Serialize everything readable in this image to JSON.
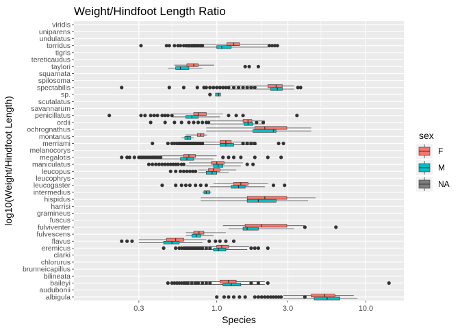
{
  "chart_data": {
    "type": "boxplot",
    "orientation": "horizontal",
    "title": "Weight/Hindfoot Length Ratio",
    "xlabel": "Species",
    "ylabel": "log10(Weight/Hindfoot Length)",
    "x_scale": "log10",
    "xlim": [
      0.11,
      18
    ],
    "x_ticks": [
      {
        "value": 0.3,
        "label": "0.3"
      },
      {
        "value": 1.0,
        "label": "1.0"
      },
      {
        "value": 3.0,
        "label": "3.0"
      },
      {
        "value": 10.0,
        "label": "10.0"
      }
    ],
    "x_minor_ticks": [
      0.1,
      0.5,
      2.0,
      5.0
    ],
    "grid": true,
    "legend": {
      "title": "sex",
      "position": "right",
      "entries": [
        {
          "label": "F",
          "color": "#F8766D"
        },
        {
          "label": "M",
          "color": "#00BFC4"
        },
        {
          "label": "NA",
          "color": "#7F7F7F"
        }
      ]
    },
    "categories": [
      "viridis",
      "uniparens",
      "undulatus",
      "torridus",
      "tigris",
      "tereticaudus",
      "taylori",
      "squamata",
      "spilosoma",
      "spectabilis",
      "sp.",
      "scutalatus",
      "savannarum",
      "penicillatus",
      "ordii",
      "ochrognathus",
      "montanus",
      "merriami",
      "melanocorys",
      "megalotis",
      "maniculatus",
      "leucopus",
      "leucophrys",
      "leucogaster",
      "intermedius",
      "hispidus",
      "harrisi",
      "gramineus",
      "fuscus",
      "fulviventer",
      "fulvescens",
      "flavus",
      "eremicus",
      "clarki",
      "chlorurus",
      "brunneicapillus",
      "bilineata",
      "baileyi",
      "audubonii",
      "albigula"
    ],
    "boxes": [
      {
        "category": "torridus",
        "sex": "F",
        "min": 0.62,
        "q1": 1.17,
        "median": 1.3,
        "q3": 1.42,
        "max": 2.2
      },
      {
        "category": "torridus",
        "sex": "M",
        "min": 0.62,
        "q1": 1.0,
        "median": 1.08,
        "q3": 1.25,
        "max": 2.2
      },
      {
        "category": "taylori",
        "sex": "F",
        "min": 0.52,
        "q1": 0.63,
        "median": 0.7,
        "q3": 0.75,
        "max": 0.96
      },
      {
        "category": "taylori",
        "sex": "M",
        "min": 0.47,
        "q1": 0.53,
        "median": 0.57,
        "q3": 0.65,
        "max": 0.8
      },
      {
        "category": "spectabilis",
        "sex": "F",
        "min": 1.2,
        "q1": 2.2,
        "median": 2.5,
        "q3": 2.75,
        "max": 3.3
      },
      {
        "category": "spectabilis",
        "sex": "M",
        "min": 1.2,
        "q1": 2.3,
        "median": 2.55,
        "q3": 2.75,
        "max": 3.3
      },
      {
        "category": "sp.",
        "sex": "M",
        "min": 0.98,
        "q1": 0.98,
        "median": 1.03,
        "q3": 1.06,
        "max": 1.06
      },
      {
        "category": "penicillatus",
        "sex": "F",
        "min": 0.5,
        "q1": 0.7,
        "median": 0.75,
        "q3": 0.85,
        "max": 1.1
      },
      {
        "category": "penicillatus",
        "sex": "M",
        "min": 0.5,
        "q1": 0.62,
        "median": 0.68,
        "q3": 0.75,
        "max": 1.05
      },
      {
        "category": "ordii",
        "sex": "F",
        "min": 0.9,
        "q1": 1.5,
        "median": 1.62,
        "q3": 1.72,
        "max": 2.1
      },
      {
        "category": "ordii",
        "sex": "M",
        "min": 0.9,
        "q1": 1.52,
        "median": 1.62,
        "q3": 1.75,
        "max": 2.1
      },
      {
        "category": "ochrognathus",
        "sex": "F",
        "min": 0.85,
        "q1": 1.8,
        "median": 2.1,
        "q3": 2.95,
        "max": 4.3
      },
      {
        "category": "ochrognathus",
        "sex": "M",
        "min": 0.85,
        "q1": 1.75,
        "median": 2.4,
        "q3": 2.5,
        "max": 4.3
      },
      {
        "category": "montanus",
        "sex": "F",
        "min": 0.62,
        "q1": 0.74,
        "median": 0.78,
        "q3": 0.82,
        "max": 0.86
      },
      {
        "category": "montanus",
        "sex": "M",
        "min": 0.58,
        "q1": 0.61,
        "median": 0.64,
        "q3": 0.67,
        "max": 0.7
      },
      {
        "category": "merriami",
        "sex": "F",
        "min": 0.55,
        "q1": 1.05,
        "median": 1.15,
        "q3": 1.25,
        "max": 1.8
      },
      {
        "category": "merriami",
        "sex": "M",
        "min": 0.55,
        "q1": 1.05,
        "median": 1.15,
        "q3": 1.3,
        "max": 1.85
      },
      {
        "category": "megalotis",
        "sex": "F",
        "min": 0.42,
        "q1": 0.6,
        "median": 0.65,
        "q3": 0.72,
        "max": 1.0
      },
      {
        "category": "megalotis",
        "sex": "M",
        "min": 0.42,
        "q1": 0.57,
        "median": 0.63,
        "q3": 0.7,
        "max": 0.95
      },
      {
        "category": "maniculatus",
        "sex": "F",
        "min": 0.65,
        "q1": 0.92,
        "median": 1.0,
        "q3": 1.12,
        "max": 1.5
      },
      {
        "category": "maniculatus",
        "sex": "M",
        "min": 0.62,
        "q1": 0.95,
        "median": 1.02,
        "q3": 1.1,
        "max": 1.45
      },
      {
        "category": "leucopus",
        "sex": "F",
        "min": 0.75,
        "q1": 0.88,
        "median": 0.95,
        "q3": 1.05,
        "max": 1.35
      },
      {
        "category": "leucopus",
        "sex": "M",
        "min": 0.75,
        "q1": 0.85,
        "median": 0.93,
        "q3": 1.0,
        "max": 1.2
      },
      {
        "category": "leucogaster",
        "sex": "F",
        "min": 0.95,
        "q1": 1.3,
        "median": 1.45,
        "q3": 1.62,
        "max": 2.2
      },
      {
        "category": "leucogaster",
        "sex": "M",
        "min": 0.9,
        "q1": 1.25,
        "median": 1.4,
        "q3": 1.55,
        "max": 2.1
      },
      {
        "category": "intermedius",
        "sex": "M",
        "min": 0.8,
        "q1": 0.82,
        "median": 0.85,
        "q3": 0.9,
        "max": 0.92
      },
      {
        "category": "hispidus",
        "sex": "F",
        "min": 0.78,
        "q1": 1.6,
        "median": 2.1,
        "q3": 2.95,
        "max": 4.6
      },
      {
        "category": "hispidus",
        "sex": "M",
        "min": 0.78,
        "q1": 1.6,
        "median": 1.9,
        "q3": 2.5,
        "max": 4.1
      },
      {
        "category": "fulviventer",
        "sex": "F",
        "min": 1.1,
        "q1": 1.55,
        "median": 2.0,
        "q3": 2.95,
        "max": 3.9
      },
      {
        "category": "fulviventer",
        "sex": "M",
        "min": 1.2,
        "q1": 1.5,
        "median": 1.6,
        "q3": 1.9,
        "max": 3.3
      },
      {
        "category": "fulvescens",
        "sex": "F",
        "min": 0.62,
        "q1": 0.7,
        "median": 0.76,
        "q3": 0.82,
        "max": 1.15
      },
      {
        "category": "fulvescens",
        "sex": "M",
        "min": 0.62,
        "q1": 0.68,
        "median": 0.73,
        "q3": 0.78,
        "max": 0.95
      },
      {
        "category": "flavus",
        "sex": "F",
        "min": 0.3,
        "q1": 0.46,
        "median": 0.53,
        "q3": 0.6,
        "max": 0.85
      },
      {
        "category": "flavus",
        "sex": "M",
        "min": 0.3,
        "q1": 0.44,
        "median": 0.5,
        "q3": 0.56,
        "max": 0.8
      },
      {
        "category": "eremicus",
        "sex": "F",
        "min": 0.6,
        "q1": 1.0,
        "median": 1.08,
        "q3": 1.2,
        "max": 1.65
      },
      {
        "category": "eremicus",
        "sex": "M",
        "min": 0.6,
        "q1": 0.95,
        "median": 1.03,
        "q3": 1.15,
        "max": 1.6
      },
      {
        "category": "baileyi",
        "sex": "F",
        "min": 0.6,
        "q1": 1.05,
        "median": 1.2,
        "q3": 1.35,
        "max": 2.1
      },
      {
        "category": "baileyi",
        "sex": "M",
        "min": 0.6,
        "q1": 1.1,
        "median": 1.25,
        "q3": 1.45,
        "max": 2.1
      },
      {
        "category": "albigula",
        "sex": "F",
        "min": 2.8,
        "q1": 4.3,
        "median": 5.3,
        "q3": 6.2,
        "max": 8.3
      },
      {
        "category": "albigula",
        "sex": "M",
        "min": 2.8,
        "q1": 4.5,
        "median": 5.5,
        "q3": 6.7,
        "max": 8.8
      }
    ],
    "outliers": [
      {
        "category": "torridus",
        "values": [
          0.31,
          0.46,
          0.48,
          0.52,
          0.55,
          0.57,
          0.6,
          0.62,
          0.65,
          0.68,
          0.7,
          0.72,
          0.75,
          0.78,
          0.8,
          2.25,
          2.35,
          2.45,
          2.55
        ]
      },
      {
        "category": "taylori",
        "values": [
          1.55,
          1.65,
          1.9
        ]
      },
      {
        "category": "spectabilis",
        "values": [
          0.23,
          0.48,
          0.6,
          0.74,
          0.82,
          0.85,
          0.9,
          0.95,
          1.0,
          1.05,
          1.1,
          1.15,
          1.2,
          1.3,
          1.4,
          1.5,
          1.6,
          1.7,
          1.8,
          3.5,
          3.65
        ]
      },
      {
        "category": "sp.",
        "values": [
          0.9
        ]
      },
      {
        "category": "penicillatus",
        "values": [
          0.19,
          0.31,
          0.33,
          0.36,
          0.38,
          0.4,
          0.43,
          0.45,
          0.47,
          0.5,
          1.2,
          1.35,
          1.5,
          3.45
        ]
      },
      {
        "category": "ordii",
        "values": [
          0.36,
          0.45,
          0.52,
          0.58,
          0.65,
          0.7,
          0.75,
          0.8,
          0.85,
          0.88,
          1.85,
          2.05
        ]
      },
      {
        "category": "ochrognathus",
        "values": []
      },
      {
        "category": "merriami",
        "values": [
          0.37,
          0.47,
          0.5,
          0.52,
          0.54,
          0.56,
          0.58,
          0.6,
          0.62,
          0.64,
          0.66,
          0.68,
          0.7,
          0.72,
          0.75,
          0.78,
          0.8,
          1.5,
          1.6,
          1.7,
          1.8,
          2.6,
          2.8
        ]
      },
      {
        "category": "megalotis",
        "values": [
          0.23,
          0.25,
          0.26,
          0.28,
          0.3,
          0.31,
          0.32,
          0.33,
          0.34,
          0.35,
          0.36,
          0.37,
          0.38,
          0.39,
          0.4,
          0.41,
          0.42,
          1.1,
          1.2,
          1.3,
          1.45,
          1.8,
          2.2,
          2.7
        ]
      },
      {
        "category": "maniculatus",
        "values": [
          0.35,
          0.37,
          0.39,
          0.41,
          0.43,
          0.45,
          0.47,
          0.49,
          0.51,
          0.53,
          0.55,
          0.58,
          0.6,
          1.6,
          1.75
        ]
      },
      {
        "category": "leucopus",
        "values": [
          0.49,
          0.53,
          0.57,
          0.6,
          0.63,
          0.66,
          0.69,
          0.72
        ]
      },
      {
        "category": "leucogaster",
        "values": [
          0.43,
          0.53,
          0.58,
          0.62,
          0.66,
          0.72,
          0.78,
          0.85,
          2.4,
          2.85
        ]
      },
      {
        "category": "fulviventer",
        "values": [
          3.9,
          6.3
        ]
      },
      {
        "category": "fulvescens",
        "values": []
      },
      {
        "category": "flavus",
        "values": [
          0.23,
          0.25,
          0.27,
          0.89,
          0.98,
          1.05,
          1.15,
          1.3
        ]
      },
      {
        "category": "eremicus",
        "values": [
          0.44,
          0.53,
          0.56,
          0.58,
          0.6,
          0.62,
          0.64,
          0.66,
          0.68,
          0.7,
          0.72,
          0.75,
          0.78,
          0.8,
          0.85,
          0.9,
          1.7,
          1.8,
          1.9,
          2.2
        ]
      },
      {
        "category": "baileyi",
        "values": [
          0.47,
          0.5,
          0.52,
          0.54,
          0.56,
          0.58,
          0.6,
          0.62,
          0.64,
          0.68,
          0.72,
          0.75,
          0.8,
          0.85,
          0.9,
          1.7,
          1.9,
          2.2,
          14.3
        ]
      },
      {
        "category": "albigula",
        "values": [
          1.0,
          1.12,
          1.2,
          1.3,
          1.42,
          1.55,
          1.8,
          1.9,
          2.0,
          2.1,
          2.2,
          2.3,
          2.4,
          2.5,
          2.6,
          2.7,
          3.9
        ]
      }
    ]
  }
}
